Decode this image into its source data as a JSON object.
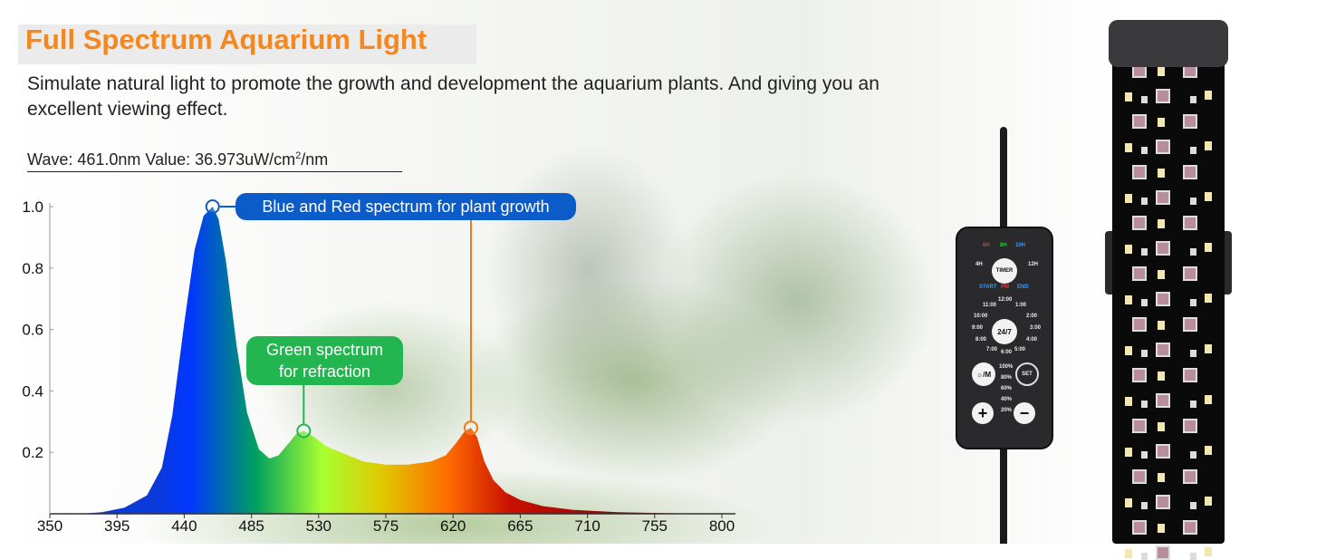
{
  "header": {
    "title": "Full Spectrum Aquarium Light",
    "subtitle": "Simulate natural light to promote the growth and development the aquarium plants. And giving you an excellent viewing effect."
  },
  "readout": {
    "text": "Wave: 461.0nm Value: 36.973uW/cm",
    "sup": "2",
    "unit": "/nm"
  },
  "annotations": {
    "blue_red": "Blue and Red spectrum for plant growth",
    "green_line1": "Green spectrum",
    "green_line2": "for refraction"
  },
  "colors": {
    "title": "#f5871f",
    "blue_label": "#0b5cc8",
    "green_label": "#22b550",
    "red_marker": "#f07a10"
  },
  "controller": {
    "timer": "TIMER",
    "mode247": "24/7",
    "h6": "6H",
    "h8": "8H",
    "h10": "10H",
    "h4": "4H",
    "h12": "12H",
    "start": "START",
    "pm": "PM",
    "end": "END",
    "hours": [
      "12:00",
      "1:00",
      "2:00",
      "3:00",
      "4:00",
      "5:00",
      "6:00",
      "7:00",
      "8:00",
      "9:00",
      "10:00",
      "11:00"
    ],
    "levels": [
      "100%",
      "80%",
      "60%",
      "40%",
      "20%"
    ],
    "plus": "+",
    "minus": "−",
    "mode": "☼/M",
    "set": "SET"
  },
  "chart_data": {
    "type": "area",
    "xlabel": "",
    "ylabel": "",
    "xlim": [
      350,
      800
    ],
    "ylim": [
      0,
      1.0
    ],
    "xticks": [
      "350",
      "395",
      "440",
      "485",
      "530",
      "575",
      "620",
      "665",
      "710",
      "755",
      "800"
    ],
    "yticks": [
      "0.2",
      "0.4",
      "0.6",
      "0.8",
      "1.0"
    ],
    "grid": false,
    "x": [
      370,
      385,
      400,
      415,
      425,
      432,
      440,
      447,
      453,
      459,
      463,
      468,
      475,
      482,
      490,
      497,
      503,
      510,
      515,
      520,
      527,
      535,
      545,
      560,
      575,
      590,
      605,
      615,
      622,
      628,
      632,
      636,
      641,
      647,
      655,
      665,
      680,
      700,
      730,
      760,
      790
    ],
    "y": [
      0,
      0.005,
      0.02,
      0.06,
      0.15,
      0.32,
      0.62,
      0.86,
      0.97,
      1.0,
      0.96,
      0.82,
      0.55,
      0.33,
      0.21,
      0.18,
      0.19,
      0.23,
      0.26,
      0.27,
      0.25,
      0.22,
      0.2,
      0.17,
      0.16,
      0.16,
      0.17,
      0.19,
      0.23,
      0.27,
      0.28,
      0.25,
      0.17,
      0.11,
      0.07,
      0.045,
      0.025,
      0.013,
      0.005,
      0.002,
      0
    ],
    "markers": [
      {
        "x": 459,
        "y": 1.0,
        "color": "#0b5cc8"
      },
      {
        "x": 520,
        "y": 0.27,
        "color": "#22b550"
      },
      {
        "x": 632,
        "y": 0.28,
        "color": "#f07a10"
      }
    ]
  }
}
